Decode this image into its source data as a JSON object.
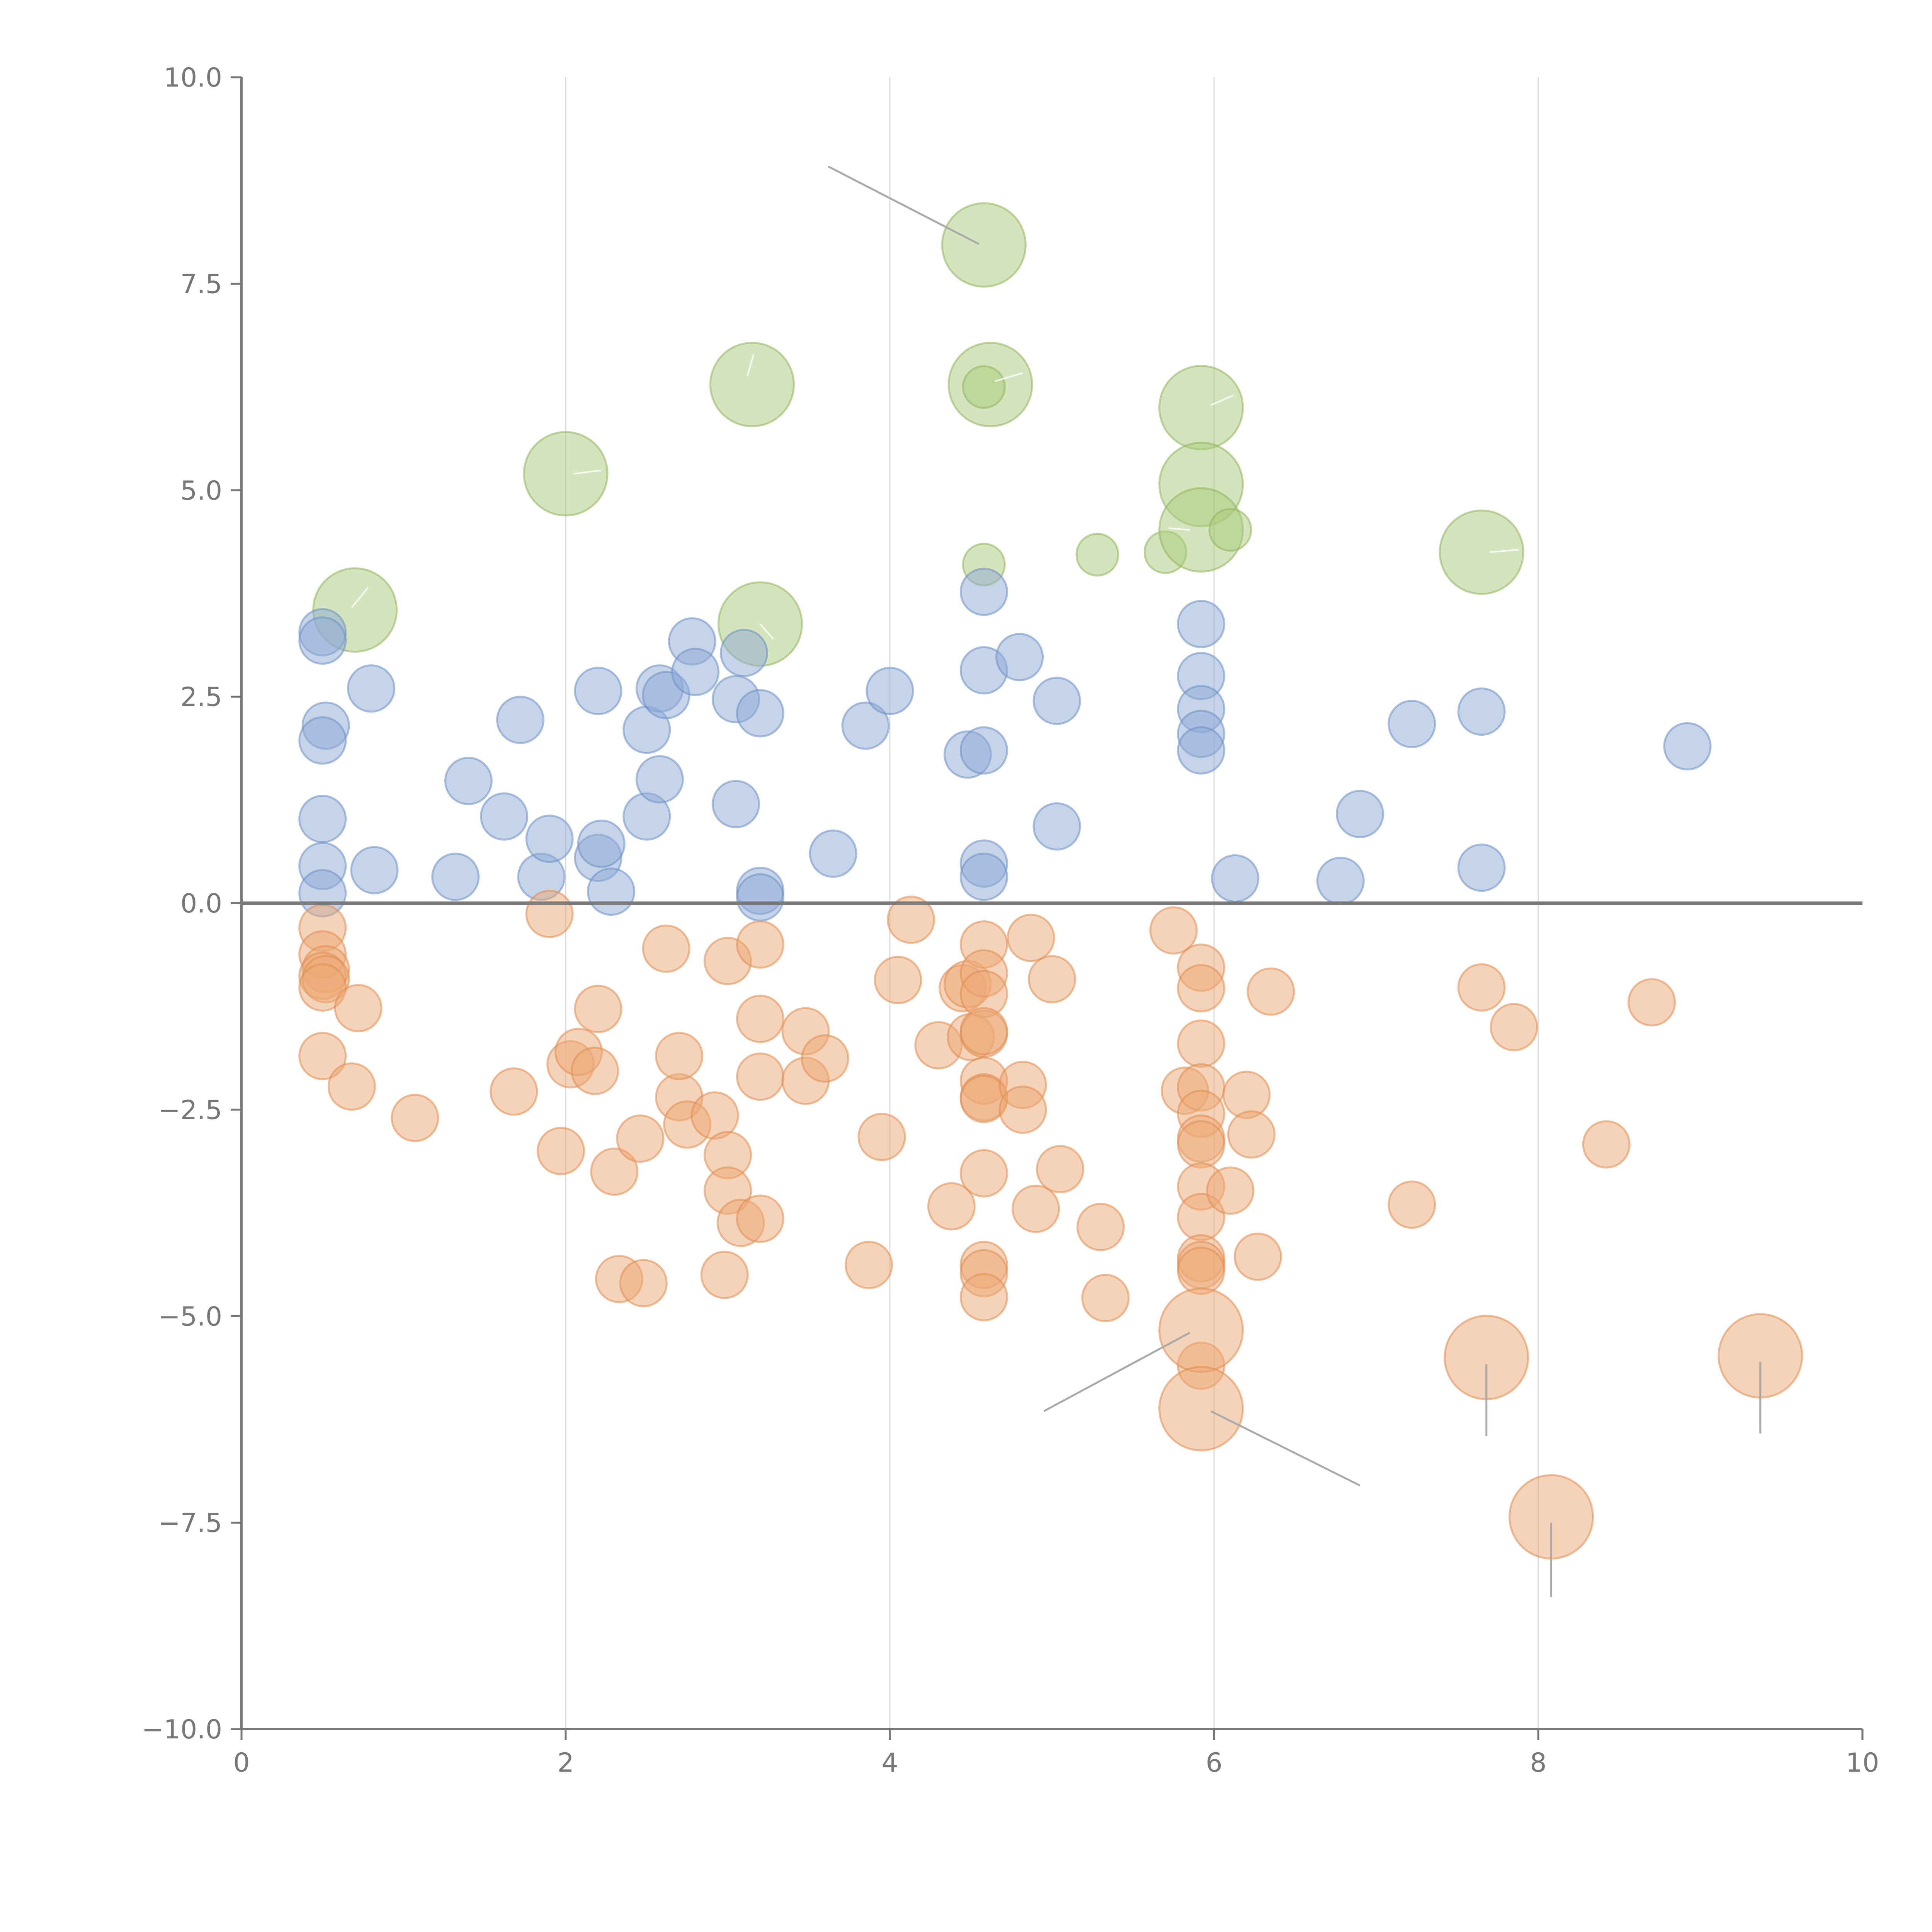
{
  "chart_data": {
    "type": "scatter",
    "title": "",
    "xlabel": "",
    "ylabel": "",
    "xlim": [
      0,
      10
    ],
    "ylim": [
      -10,
      10
    ],
    "x_ticks": [
      0,
      2,
      4,
      6,
      8,
      10
    ],
    "y_ticks": [
      10,
      7.5,
      5,
      2.5,
      0,
      -2.5,
      -5,
      -7.5,
      -10
    ],
    "x_tick_labels": [
      "0",
      "2",
      "4",
      "6",
      "8",
      "10"
    ],
    "y_tick_labels": [
      "10.0",
      "7.5",
      "5.0",
      "2.5",
      "0.0",
      "−2.5",
      "−5.0",
      "−7.5",
      "−10.0"
    ],
    "vertical_grid_at": [
      2,
      4,
      6,
      8
    ],
    "reference_line_y": 0,
    "series": [
      {
        "name": "green",
        "color": "#a9c97a",
        "stroke": "#8fb45c",
        "points": [
          [
            0.7,
            3.55,
            1.8
          ],
          [
            2.0,
            5.2,
            1.8
          ],
          [
            3.15,
            6.28,
            1.8
          ],
          [
            3.2,
            3.38,
            1.8
          ],
          [
            4.58,
            7.97,
            1.8
          ],
          [
            4.62,
            6.28,
            1.8
          ],
          [
            4.58,
            6.25,
            0.9
          ],
          [
            4.58,
            4.1,
            0.9
          ],
          [
            5.28,
            4.22,
            0.9
          ],
          [
            5.7,
            4.25,
            0.9
          ],
          [
            5.92,
            6.0,
            1.8
          ],
          [
            5.92,
            5.07,
            1.8
          ],
          [
            5.92,
            4.52,
            1.8
          ],
          [
            6.1,
            4.52,
            0.9
          ],
          [
            7.65,
            4.25,
            1.8
          ]
        ]
      },
      {
        "name": "blue",
        "color": "#8eaad6",
        "stroke": "#6b8fc4",
        "points": [
          [
            0.5,
            3.28,
            1
          ],
          [
            0.5,
            3.18,
            1
          ],
          [
            0.52,
            2.15,
            1
          ],
          [
            0.5,
            1.97,
            1
          ],
          [
            0.8,
            2.6,
            1
          ],
          [
            0.5,
            1.02,
            1
          ],
          [
            0.5,
            0.45,
            1
          ],
          [
            0.5,
            0.12,
            1
          ],
          [
            0.82,
            0.4,
            1
          ],
          [
            1.32,
            0.32,
            1
          ],
          [
            1.4,
            1.48,
            1
          ],
          [
            1.62,
            1.05,
            1
          ],
          [
            1.72,
            2.22,
            1
          ],
          [
            1.85,
            0.32,
            1
          ],
          [
            1.9,
            0.78,
            1
          ],
          [
            2.2,
            0.55,
            1
          ],
          [
            2.22,
            0.72,
            1
          ],
          [
            2.28,
            0.14,
            1
          ],
          [
            2.2,
            2.57,
            1
          ],
          [
            2.5,
            2.1,
            1
          ],
          [
            2.5,
            1.05,
            1
          ],
          [
            2.58,
            1.5,
            1
          ],
          [
            2.58,
            2.6,
            1
          ],
          [
            2.62,
            2.52,
            1
          ],
          [
            2.78,
            3.17,
            1
          ],
          [
            2.8,
            2.8,
            1
          ],
          [
            3.05,
            2.47,
            1
          ],
          [
            3.05,
            1.2,
            1
          ],
          [
            3.1,
            3.03,
            1
          ],
          [
            3.2,
            2.3,
            1
          ],
          [
            3.2,
            0.15,
            1
          ],
          [
            3.2,
            0.07,
            1
          ],
          [
            3.65,
            0.6,
            1
          ],
          [
            3.85,
            2.15,
            1
          ],
          [
            4.0,
            2.57,
            1
          ],
          [
            4.48,
            1.8,
            1
          ],
          [
            4.58,
            1.85,
            1
          ],
          [
            4.58,
            3.77,
            1
          ],
          [
            4.58,
            2.82,
            1
          ],
          [
            4.58,
            0.48,
            1
          ],
          [
            4.58,
            0.32,
            1
          ],
          [
            4.8,
            2.98,
            1
          ],
          [
            5.03,
            2.45,
            1
          ],
          [
            5.03,
            0.93,
            1
          ],
          [
            5.92,
            3.38,
            1
          ],
          [
            5.92,
            2.75,
            1
          ],
          [
            5.92,
            2.35,
            1
          ],
          [
            5.92,
            2.05,
            1
          ],
          [
            5.92,
            1.85,
            1
          ],
          [
            6.13,
            0.3,
            1
          ],
          [
            6.78,
            0.27,
            1
          ],
          [
            6.9,
            1.08,
            1
          ],
          [
            7.22,
            2.17,
            1
          ],
          [
            7.65,
            2.32,
            1
          ],
          [
            7.65,
            0.43,
            1
          ],
          [
            8.92,
            1.9,
            1
          ]
        ]
      },
      {
        "name": "orange",
        "color": "#eba874",
        "stroke": "#e08c4e",
        "points": [
          [
            0.5,
            -0.3,
            1
          ],
          [
            0.5,
            -0.62,
            1
          ],
          [
            0.52,
            -0.8,
            1
          ],
          [
            0.5,
            -0.88,
            1
          ],
          [
            0.52,
            -0.92,
            1
          ],
          [
            0.5,
            -1.02,
            1
          ],
          [
            0.72,
            -1.27,
            1
          ],
          [
            0.5,
            -1.85,
            1
          ],
          [
            0.68,
            -2.22,
            1
          ],
          [
            1.07,
            -2.6,
            1
          ],
          [
            1.68,
            -2.28,
            1
          ],
          [
            1.9,
            -0.13,
            1
          ],
          [
            1.97,
            -3.0,
            1
          ],
          [
            2.03,
            -1.95,
            1
          ],
          [
            2.08,
            -1.8,
            1
          ],
          [
            2.18,
            -2.03,
            1
          ],
          [
            2.2,
            -1.28,
            1
          ],
          [
            2.3,
            -3.25,
            1
          ],
          [
            2.33,
            -4.55,
            1
          ],
          [
            2.48,
            -4.6,
            1
          ],
          [
            2.46,
            -2.85,
            1
          ],
          [
            2.62,
            -0.55,
            1
          ],
          [
            2.7,
            -2.35,
            1
          ],
          [
            2.7,
            -1.85,
            1
          ],
          [
            2.75,
            -2.68,
            1
          ],
          [
            2.92,
            -2.57,
            1
          ],
          [
            2.98,
            -4.5,
            1
          ],
          [
            3.0,
            -0.7,
            1
          ],
          [
            3.0,
            -3.05,
            1
          ],
          [
            3.0,
            -3.48,
            1
          ],
          [
            3.08,
            -3.87,
            1
          ],
          [
            3.2,
            -0.5,
            1
          ],
          [
            3.2,
            -1.4,
            1
          ],
          [
            3.2,
            -2.1,
            1
          ],
          [
            3.2,
            -3.82,
            1
          ],
          [
            3.48,
            -1.55,
            1
          ],
          [
            3.48,
            -2.15,
            1
          ],
          [
            3.6,
            -1.88,
            1
          ],
          [
            3.87,
            -4.38,
            1
          ],
          [
            3.95,
            -2.83,
            1
          ],
          [
            4.05,
            -0.93,
            1
          ],
          [
            4.13,
            -0.2,
            1
          ],
          [
            4.3,
            -1.72,
            1
          ],
          [
            4.38,
            -3.67,
            1
          ],
          [
            4.45,
            -1.03,
            1
          ],
          [
            4.48,
            -0.98,
            1
          ],
          [
            4.5,
            -1.62,
            1
          ],
          [
            4.58,
            -0.5,
            1
          ],
          [
            4.58,
            -0.85,
            1
          ],
          [
            4.58,
            -1.1,
            1
          ],
          [
            4.58,
            -1.58,
            1
          ],
          [
            4.58,
            -2.15,
            1
          ],
          [
            4.58,
            -2.35,
            1
          ],
          [
            4.58,
            -2.37,
            1
          ],
          [
            4.58,
            -3.27,
            1
          ],
          [
            4.58,
            -4.38,
            1
          ],
          [
            4.58,
            -4.48,
            1
          ],
          [
            4.58,
            -4.77,
            1
          ],
          [
            4.58,
            -1.55,
            1
          ],
          [
            4.82,
            -2.2,
            1
          ],
          [
            4.82,
            -2.5,
            1
          ],
          [
            4.87,
            -0.42,
            1
          ],
          [
            4.9,
            -3.7,
            1
          ],
          [
            5.0,
            -0.92,
            1
          ],
          [
            5.05,
            -3.22,
            1
          ],
          [
            5.3,
            -3.92,
            1
          ],
          [
            5.33,
            -4.78,
            1
          ],
          [
            5.75,
            -0.33,
            1
          ],
          [
            5.82,
            -2.27,
            1
          ],
          [
            5.92,
            -0.78,
            1
          ],
          [
            5.92,
            -1.03,
            1
          ],
          [
            5.92,
            -1.7,
            1
          ],
          [
            5.92,
            -2.23,
            1
          ],
          [
            5.92,
            -2.55,
            1
          ],
          [
            5.92,
            -2.85,
            1
          ],
          [
            5.92,
            -2.92,
            1
          ],
          [
            5.92,
            -3.43,
            1
          ],
          [
            5.92,
            -3.8,
            1
          ],
          [
            5.92,
            -4.3,
            1
          ],
          [
            5.92,
            -4.38,
            1
          ],
          [
            5.92,
            -4.45,
            1
          ],
          [
            5.92,
            -5.6,
            1
          ],
          [
            5.92,
            -5.17,
            1.8
          ],
          [
            5.92,
            -6.12,
            1.8
          ],
          [
            6.1,
            -3.48,
            1
          ],
          [
            6.2,
            -2.32,
            1
          ],
          [
            6.23,
            -2.8,
            1
          ],
          [
            6.27,
            -4.28,
            1
          ],
          [
            6.35,
            -1.07,
            1
          ],
          [
            7.22,
            -3.65,
            1
          ],
          [
            7.65,
            -1.02,
            1
          ],
          [
            7.68,
            -5.5,
            1.8
          ],
          [
            7.85,
            -1.5,
            1
          ],
          [
            8.08,
            -7.43,
            1.8
          ],
          [
            8.42,
            -2.92,
            1
          ],
          [
            8.7,
            -1.2,
            1
          ],
          [
            9.37,
            -5.48,
            1.8
          ]
        ]
      }
    ],
    "callouts": [
      {
        "x1": 4.55,
        "y1": 7.98,
        "x2": 3.62,
        "y2": 8.92
      },
      {
        "x1": 5.85,
        "y1": -5.2,
        "x2": 4.95,
        "y2": -6.15
      },
      {
        "x1": 5.98,
        "y1": -6.15,
        "x2": 6.9,
        "y2": -7.05
      },
      {
        "x1": 7.68,
        "y1": -5.58,
        "x2": 7.68,
        "y2": -6.45
      },
      {
        "x1": 8.08,
        "y1": -7.5,
        "x2": 8.08,
        "y2": -8.4
      },
      {
        "x1": 9.37,
        "y1": -5.55,
        "x2": 9.37,
        "y2": -6.42
      }
    ],
    "inner_marks": [
      {
        "x1": 0.68,
        "y1": 3.58,
        "x2": 0.78,
        "y2": 3.82
      },
      {
        "x1": 2.05,
        "y1": 5.2,
        "x2": 2.22,
        "y2": 5.24
      },
      {
        "x1": 3.12,
        "y1": 6.38,
        "x2": 3.16,
        "y2": 6.65
      },
      {
        "x1": 3.2,
        "y1": 3.38,
        "x2": 3.28,
        "y2": 3.2
      },
      {
        "x1": 4.65,
        "y1": 6.32,
        "x2": 4.82,
        "y2": 6.42
      },
      {
        "x1": 5.98,
        "y1": 6.03,
        "x2": 6.12,
        "y2": 6.15
      },
      {
        "x1": 5.85,
        "y1": 4.52,
        "x2": 5.72,
        "y2": 4.54
      },
      {
        "x1": 7.7,
        "y1": 4.25,
        "x2": 7.88,
        "y2": 4.28
      }
    ]
  }
}
